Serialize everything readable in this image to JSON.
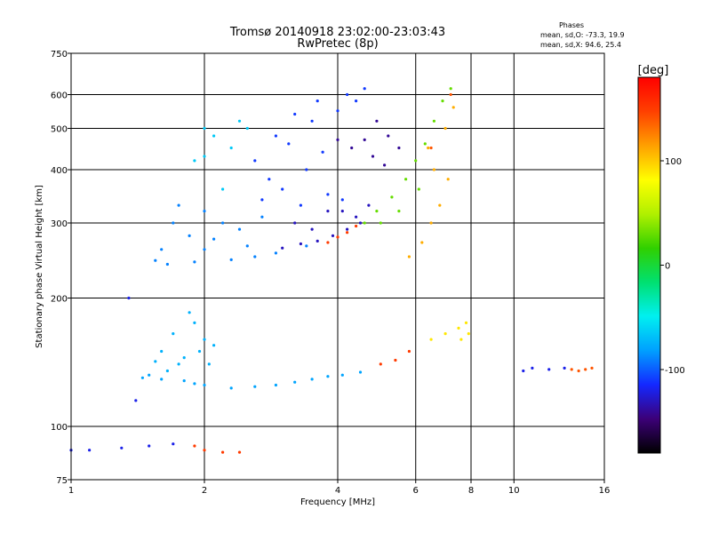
{
  "chart_data": {
    "type": "scatter",
    "title": "Tromsø 20140918 23:02:00-23:03:43",
    "subtitle": "RwPretec (8p)",
    "xlabel": "Frequency [MHz]",
    "ylabel": "Stationary phase Virtual Height [km]",
    "x_scale": "log",
    "y_scale": "log",
    "xlim": [
      1,
      16
    ],
    "ylim": [
      75,
      750
    ],
    "xticks": [
      1,
      2,
      4,
      6,
      8,
      10,
      16
    ],
    "yticks": [
      75,
      100,
      200,
      300,
      400,
      500,
      600,
      750
    ],
    "grid": true,
    "stats": {
      "heading": "Phases",
      "line_o": "mean, sd,O: -73.3, 19.9",
      "line_x": "mean, sd,X:  94.6, 25.4"
    },
    "colorbar": {
      "label": "[deg]",
      "range": [
        -180,
        180
      ],
      "ticks": [
        100,
        0,
        -100
      ],
      "colors": [
        "#000000",
        "#3c0078",
        "#1428ff",
        "#00a0ff",
        "#00f0f0",
        "#00e070",
        "#30d000",
        "#b0f000",
        "#ffff00",
        "#ffa000",
        "#ff4000",
        "#ff0000"
      ]
    },
    "series": [
      {
        "phase": -90,
        "points": [
          [
            1.55,
            245
          ],
          [
            1.9,
            243
          ],
          [
            2.3,
            246
          ],
          [
            2.6,
            250
          ],
          [
            2.9,
            255
          ],
          [
            3.4,
            265
          ],
          [
            1.6,
            260
          ],
          [
            1.7,
            300
          ],
          [
            1.85,
            280
          ],
          [
            2.0,
            320
          ],
          [
            2.1,
            275
          ],
          [
            2.2,
            300
          ],
          [
            2.4,
            290
          ],
          [
            2.7,
            310
          ],
          [
            1.75,
            330
          ],
          [
            2.0,
            260
          ],
          [
            2.5,
            265
          ],
          [
            1.65,
            240
          ]
        ]
      },
      {
        "phase": -110,
        "points": [
          [
            2.6,
            420
          ],
          [
            2.9,
            480
          ],
          [
            3.2,
            540
          ],
          [
            3.6,
            580
          ],
          [
            4.2,
            600
          ],
          [
            4.6,
            620
          ],
          [
            2.8,
            380
          ],
          [
            3.1,
            460
          ],
          [
            3.5,
            520
          ],
          [
            4.0,
            550
          ],
          [
            4.4,
            580
          ],
          [
            3.0,
            360
          ],
          [
            3.3,
            330
          ],
          [
            3.8,
            350
          ],
          [
            4.1,
            340
          ],
          [
            2.7,
            340
          ],
          [
            3.4,
            400
          ],
          [
            3.7,
            440
          ]
        ]
      },
      {
        "phase": -130,
        "points": [
          [
            3.0,
            262
          ],
          [
            3.3,
            268
          ],
          [
            3.6,
            272
          ],
          [
            3.9,
            280
          ],
          [
            4.2,
            290
          ],
          [
            4.5,
            300
          ],
          [
            3.2,
            300
          ],
          [
            3.5,
            290
          ],
          [
            3.8,
            320
          ],
          [
            4.1,
            320
          ],
          [
            4.4,
            310
          ],
          [
            4.7,
            330
          ]
        ]
      },
      {
        "phase": -140,
        "points": [
          [
            4.9,
            520
          ],
          [
            5.2,
            480
          ],
          [
            5.5,
            450
          ],
          [
            4.8,
            430
          ],
          [
            5.1,
            410
          ],
          [
            4.6,
            470
          ],
          [
            4.3,
            450
          ],
          [
            4.0,
            470
          ]
        ]
      },
      {
        "phase": -80,
        "points": [
          [
            1.45,
            130
          ],
          [
            1.6,
            129
          ],
          [
            1.8,
            128
          ],
          [
            2.0,
            125
          ],
          [
            2.3,
            123
          ],
          [
            2.6,
            124
          ],
          [
            2.9,
            125
          ],
          [
            3.2,
            127
          ],
          [
            3.5,
            129
          ],
          [
            3.8,
            131
          ],
          [
            4.1,
            132
          ],
          [
            4.5,
            134
          ],
          [
            1.5,
            132
          ],
          [
            1.9,
            126
          ]
        ]
      },
      {
        "phase": -75,
        "points": [
          [
            1.6,
            150
          ],
          [
            1.7,
            165
          ],
          [
            1.8,
            145
          ],
          [
            1.9,
            175
          ],
          [
            2.0,
            160
          ],
          [
            2.05,
            140
          ],
          [
            1.75,
            140
          ],
          [
            1.65,
            135
          ],
          [
            1.95,
            150
          ],
          [
            2.1,
            155
          ],
          [
            1.85,
            185
          ],
          [
            1.55,
            142
          ]
        ]
      },
      {
        "phase": -65,
        "points": [
          [
            2.0,
            500
          ],
          [
            2.1,
            480
          ],
          [
            2.0,
            430
          ],
          [
            2.2,
            360
          ],
          [
            1.9,
            420
          ],
          [
            2.3,
            450
          ],
          [
            2.5,
            500
          ],
          [
            2.4,
            520
          ]
        ]
      },
      {
        "phase": 30,
        "points": [
          [
            4.6,
            300
          ],
          [
            4.9,
            320
          ],
          [
            5.3,
            345
          ],
          [
            5.7,
            380
          ],
          [
            6.0,
            420
          ],
          [
            6.3,
            460
          ],
          [
            6.6,
            520
          ],
          [
            6.9,
            580
          ],
          [
            7.2,
            620
          ],
          [
            5.0,
            300
          ],
          [
            5.5,
            320
          ],
          [
            6.1,
            360
          ]
        ]
      },
      {
        "phase": 110,
        "points": [
          [
            5.8,
            250
          ],
          [
            6.2,
            270
          ],
          [
            6.5,
            300
          ],
          [
            6.8,
            330
          ],
          [
            7.1,
            380
          ],
          [
            6.4,
            450
          ],
          [
            7.0,
            500
          ],
          [
            7.3,
            560
          ],
          [
            6.6,
            400
          ]
        ]
      },
      {
        "phase": 150,
        "points": [
          [
            3.8,
            270
          ],
          [
            4.0,
            278
          ],
          [
            4.2,
            285
          ],
          [
            4.4,
            295
          ],
          [
            5.0,
            140
          ],
          [
            5.4,
            143
          ],
          [
            5.8,
            150
          ],
          [
            2.0,
            88
          ],
          [
            2.2,
            87
          ],
          [
            2.4,
            87
          ],
          [
            1.9,
            90
          ]
        ]
      },
      {
        "phase": 90,
        "points": [
          [
            6.5,
            160
          ],
          [
            7.0,
            165
          ],
          [
            7.5,
            170
          ],
          [
            7.8,
            175
          ],
          [
            7.6,
            160
          ],
          [
            7.9,
            165
          ]
        ]
      },
      {
        "phase": -120,
        "points": [
          [
            1.0,
            88
          ],
          [
            1.1,
            88
          ],
          [
            1.3,
            89
          ],
          [
            1.5,
            90
          ],
          [
            1.7,
            91
          ],
          [
            10.5,
            135
          ],
          [
            11.0,
            137
          ],
          [
            12.0,
            136
          ],
          [
            13.0,
            137
          ],
          [
            1.4,
            115
          ],
          [
            1.35,
            200
          ]
        ]
      },
      {
        "phase": 140,
        "points": [
          [
            13.5,
            136
          ],
          [
            14.0,
            135
          ],
          [
            14.5,
            136
          ],
          [
            15.0,
            137
          ],
          [
            6.5,
            450
          ],
          [
            7.2,
            600
          ]
        ]
      }
    ]
  }
}
